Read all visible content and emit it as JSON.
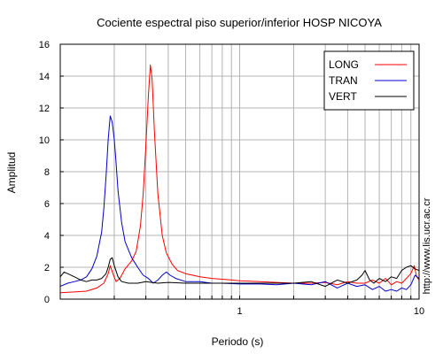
{
  "chart_data": {
    "type": "line",
    "title": "Cociente espectral piso superior/inferior  HOSP NICOYA",
    "xlabel": "Periodo (s)",
    "ylabel": "Amplitud",
    "x_scale": "log",
    "xlim": [
      0.1,
      10
    ],
    "ylim": [
      0,
      16
    ],
    "x_tick_labels": [
      {
        "value": 1,
        "label": "1"
      },
      {
        "value": 10,
        "label": "10"
      }
    ],
    "y_ticks": [
      0,
      2,
      4,
      6,
      8,
      10,
      12,
      14,
      16
    ],
    "grid": true,
    "legend_position": "top-right",
    "series": [
      {
        "name": "LONG",
        "color": "#ff0000",
        "points": [
          [
            0.1,
            0.4
          ],
          [
            0.12,
            0.45
          ],
          [
            0.14,
            0.5
          ],
          [
            0.16,
            0.7
          ],
          [
            0.175,
            1.0
          ],
          [
            0.185,
            1.6
          ],
          [
            0.19,
            2.1
          ],
          [
            0.198,
            1.5
          ],
          [
            0.205,
            1.1
          ],
          [
            0.215,
            1.3
          ],
          [
            0.23,
            1.9
          ],
          [
            0.25,
            2.4
          ],
          [
            0.265,
            3.0
          ],
          [
            0.28,
            4.6
          ],
          [
            0.29,
            6.6
          ],
          [
            0.3,
            9.6
          ],
          [
            0.31,
            12.8
          ],
          [
            0.318,
            14.7
          ],
          [
            0.325,
            13.8
          ],
          [
            0.335,
            10.5
          ],
          [
            0.35,
            6.6
          ],
          [
            0.37,
            4.0
          ],
          [
            0.39,
            2.9
          ],
          [
            0.42,
            2.2
          ],
          [
            0.45,
            1.8
          ],
          [
            0.5,
            1.6
          ],
          [
            0.6,
            1.4
          ],
          [
            0.7,
            1.3
          ],
          [
            0.8,
            1.25
          ],
          [
            1.0,
            1.15
          ],
          [
            1.3,
            1.1
          ],
          [
            1.6,
            1.05
          ],
          [
            2.0,
            1.0
          ],
          [
            2.5,
            1.0
          ],
          [
            3.0,
            1.05
          ],
          [
            3.5,
            0.9
          ],
          [
            4.0,
            1.1
          ],
          [
            4.5,
            1.0
          ],
          [
            5.0,
            1.0
          ],
          [
            5.5,
            1.2
          ],
          [
            6.0,
            1.0
          ],
          [
            6.5,
            1.3
          ],
          [
            7.0,
            0.9
          ],
          [
            7.5,
            1.1
          ],
          [
            8.0,
            1.0
          ],
          [
            8.5,
            1.3
          ],
          [
            9.0,
            1.6
          ],
          [
            9.4,
            2.1
          ],
          [
            9.7,
            1.4
          ],
          [
            10.0,
            1.2
          ]
        ]
      },
      {
        "name": "TRAN",
        "color": "#0000cc",
        "points": [
          [
            0.1,
            0.8
          ],
          [
            0.11,
            1.0
          ],
          [
            0.12,
            1.1
          ],
          [
            0.13,
            1.2
          ],
          [
            0.14,
            1.4
          ],
          [
            0.15,
            1.9
          ],
          [
            0.16,
            2.7
          ],
          [
            0.17,
            4.2
          ],
          [
            0.175,
            5.7
          ],
          [
            0.18,
            7.7
          ],
          [
            0.185,
            10.0
          ],
          [
            0.19,
            11.5
          ],
          [
            0.195,
            11.1
          ],
          [
            0.2,
            10.0
          ],
          [
            0.205,
            8.5
          ],
          [
            0.21,
            6.8
          ],
          [
            0.22,
            4.8
          ],
          [
            0.23,
            3.6
          ],
          [
            0.25,
            2.6
          ],
          [
            0.27,
            2.0
          ],
          [
            0.29,
            1.5
          ],
          [
            0.31,
            1.3
          ],
          [
            0.33,
            1.0
          ],
          [
            0.35,
            1.2
          ],
          [
            0.37,
            1.5
          ],
          [
            0.39,
            1.7
          ],
          [
            0.41,
            1.5
          ],
          [
            0.44,
            1.3
          ],
          [
            0.5,
            1.1
          ],
          [
            0.6,
            1.1
          ],
          [
            0.7,
            1.0
          ],
          [
            0.8,
            1.0
          ],
          [
            1.0,
            0.95
          ],
          [
            1.3,
            0.95
          ],
          [
            1.6,
            0.9
          ],
          [
            2.0,
            1.0
          ],
          [
            2.5,
            0.9
          ],
          [
            3.0,
            1.1
          ],
          [
            3.5,
            0.7
          ],
          [
            4.0,
            1.0
          ],
          [
            4.5,
            0.8
          ],
          [
            5.0,
            0.9
          ],
          [
            5.5,
            0.6
          ],
          [
            6.0,
            0.8
          ],
          [
            6.5,
            0.5
          ],
          [
            7.0,
            0.6
          ],
          [
            7.5,
            0.5
          ],
          [
            8.0,
            0.7
          ],
          [
            8.5,
            0.6
          ],
          [
            9.0,
            0.9
          ],
          [
            9.5,
            1.5
          ],
          [
            10.0,
            1.3
          ]
        ]
      },
      {
        "name": "VERT",
        "color": "#000000",
        "points": [
          [
            0.1,
            1.4
          ],
          [
            0.105,
            1.7
          ],
          [
            0.11,
            1.6
          ],
          [
            0.12,
            1.4
          ],
          [
            0.13,
            1.2
          ],
          [
            0.14,
            1.1
          ],
          [
            0.15,
            1.2
          ],
          [
            0.16,
            1.2
          ],
          [
            0.17,
            1.3
          ],
          [
            0.18,
            1.6
          ],
          [
            0.185,
            2.0
          ],
          [
            0.19,
            2.5
          ],
          [
            0.195,
            2.6
          ],
          [
            0.2,
            2.1
          ],
          [
            0.21,
            1.4
          ],
          [
            0.22,
            1.1
          ],
          [
            0.24,
            1.0
          ],
          [
            0.27,
            1.0
          ],
          [
            0.3,
            1.1
          ],
          [
            0.35,
            1.0
          ],
          [
            0.4,
            1.05
          ],
          [
            0.5,
            1.0
          ],
          [
            0.6,
            1.0
          ],
          [
            0.8,
            1.0
          ],
          [
            1.0,
            1.0
          ],
          [
            1.3,
            1.0
          ],
          [
            1.6,
            1.0
          ],
          [
            2.0,
            1.0
          ],
          [
            2.5,
            1.1
          ],
          [
            3.0,
            0.8
          ],
          [
            3.5,
            1.2
          ],
          [
            4.0,
            1.0
          ],
          [
            4.5,
            1.2
          ],
          [
            4.8,
            1.5
          ],
          [
            5.0,
            1.8
          ],
          [
            5.3,
            1.2
          ],
          [
            5.6,
            1.0
          ],
          [
            6.0,
            1.3
          ],
          [
            6.5,
            1.1
          ],
          [
            7.0,
            1.4
          ],
          [
            7.5,
            1.3
          ],
          [
            8.0,
            1.8
          ],
          [
            8.5,
            2.0
          ],
          [
            9.0,
            2.1
          ],
          [
            9.5,
            1.9
          ],
          [
            10.0,
            1.8
          ]
        ]
      }
    ]
  },
  "watermark": "http://www.lis.ucr.ac.cr"
}
